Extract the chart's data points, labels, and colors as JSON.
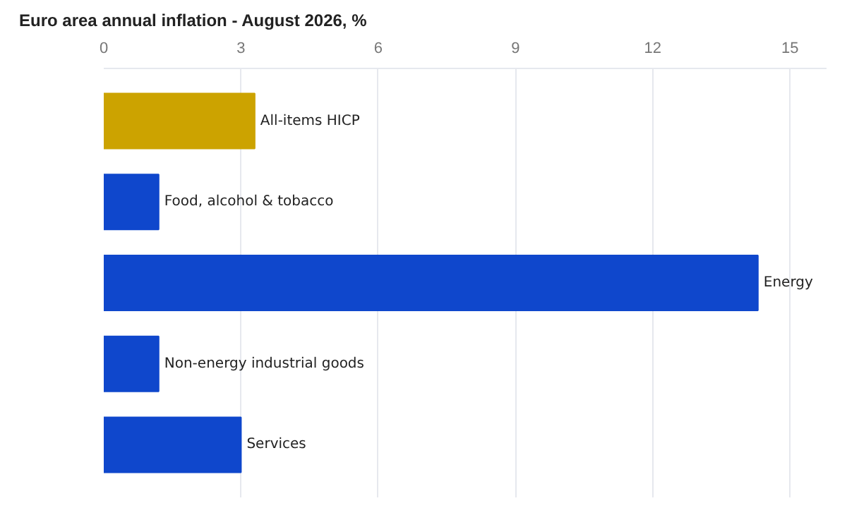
{
  "chart_data": {
    "type": "bar",
    "orientation": "horizontal",
    "title": "Euro area annual inflation - August 2026, %",
    "categories": [
      "All-items HICP",
      "Food, alcohol & tobacco",
      "Energy",
      "Non-energy industrial goods",
      "Services"
    ],
    "values": [
      3.3,
      1.2,
      14.3,
      1.2,
      3.0
    ],
    "colors": [
      "#cca300",
      "#0f47cc",
      "#0f47cc",
      "#0f47cc",
      "#0f47cc"
    ],
    "xlim": [
      0,
      15.8
    ],
    "xticks": [
      0,
      3,
      6,
      9,
      12,
      15
    ],
    "grid": "x"
  }
}
